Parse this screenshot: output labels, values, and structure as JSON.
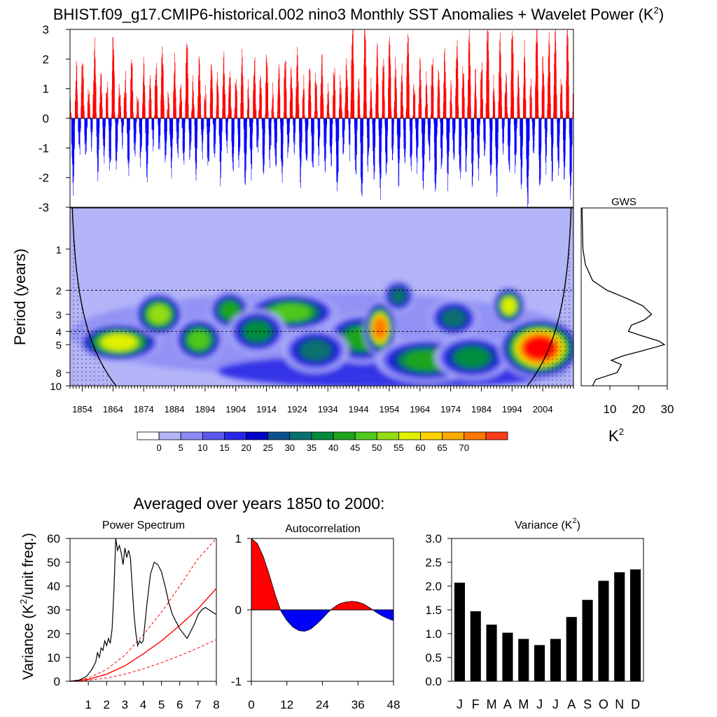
{
  "title": {
    "main": "BHIST.f09_g17.CMIP6-historical.002 nino3 Monthly SST Anomalies + Wavelet Power (K",
    "sup": "2",
    "close": ")"
  },
  "colors": {
    "positive": "#ff0000",
    "negative": "#0000ff",
    "wavelet_levels": [
      "#ffffff",
      "#b4b4f9",
      "#8c8cf5",
      "#5a5af0",
      "#2828e6",
      "#0000c8",
      "#0a508c",
      "#087070",
      "#008c3c",
      "#1ea51e",
      "#50c81e",
      "#96dc14",
      "#e0f000",
      "#ffd200",
      "#ffaa00",
      "#ff7800",
      "#ff3c14",
      "#ff0000"
    ]
  },
  "chart_data": [
    {
      "id": "sst_anomalies",
      "type": "bar",
      "title": "nino3 Monthly SST Anomalies",
      "x_start_year": 1850,
      "x_end_year": 2014,
      "ylim": [
        -3,
        3
      ],
      "yticks": [
        3,
        2,
        1,
        0,
        -1,
        -2,
        -3
      ],
      "ytick_labels": [
        "3",
        "2",
        "1",
        "0",
        "-1",
        "-2",
        "-3"
      ],
      "annual_anomaly_peaks": [
        0.5,
        -2.2,
        1.6,
        -1.0,
        1.8,
        -1.1,
        0.8,
        -0.8,
        2.3,
        -1.8,
        1.4,
        -1.2,
        1.0,
        -1.6,
        2.6,
        -1.5,
        0.9,
        -0.7,
        1.2,
        -1.7,
        1.9,
        -1.1,
        0.6,
        -1.3,
        1.7,
        -1.9,
        1.2,
        -0.8,
        1.6,
        -1.0,
        2.2,
        -1.3,
        0.7,
        -1.6,
        1.8,
        -1.1,
        1.0,
        -1.4,
        2.5,
        -1.2,
        1.1,
        -1.8,
        1.9,
        -1.0,
        0.8,
        -1.5,
        1.7,
        -1.2,
        1.3,
        -1.9,
        1.9,
        -0.9,
        1.4,
        -1.6,
        1.2,
        -1.4,
        2.0,
        -2.1,
        1.0,
        -1.7,
        1.8,
        -1.0,
        1.3,
        -1.8,
        2.0,
        -1.3,
        0.8,
        -1.5,
        1.6,
        -1.9,
        1.9,
        -1.1,
        1.5,
        -1.0,
        2.1,
        -2.0,
        1.1,
        -1.4,
        1.6,
        -1.6,
        1.3,
        -1.2,
        1.9,
        -1.6,
        0.9,
        -1.4,
        1.6,
        -2.3,
        1.2,
        -1.1,
        1.7,
        -1.0,
        3.0,
        -1.8,
        1.2,
        -2.6,
        3.0,
        -1.5,
        1.0,
        -1.9,
        2.3,
        -2.4,
        1.9,
        -1.8,
        2.6,
        -1.3,
        1.7,
        -2.0,
        1.5,
        -1.4,
        2.7,
        -1.6,
        1.0,
        -1.5,
        1.8,
        -2.2,
        1.2,
        -1.2,
        1.9,
        -2.4,
        1.5,
        -1.6,
        2.1,
        -2.0,
        1.0,
        -1.3,
        2.4,
        -1.9,
        1.6,
        -1.6,
        2.8,
        -2.1,
        1.4,
        -1.7,
        1.7,
        -1.2,
        3.0,
        -1.9,
        1.1,
        -2.3,
        2.6,
        -1.0,
        1.3,
        -1.7,
        2.9,
        -1.6,
        1.4,
        -2.2,
        2.2,
        -2.8,
        1.1,
        -1.1,
        3.0,
        -2.3,
        1.9,
        -1.5,
        2.6,
        -2.0,
        2.9,
        -1.7,
        1.2,
        -1.9,
        3.0,
        -2.5,
        1.4,
        -1.5,
        2.1
      ]
    },
    {
      "id": "wavelet_power",
      "type": "heatmap",
      "title": "Wavelet Power (K2)",
      "ylabel": "Period (years)",
      "yticks": [
        1,
        2,
        3,
        4,
        5,
        8,
        10
      ],
      "ytick_labels": [
        "1",
        "2",
        "3",
        "4",
        "5",
        "8",
        "10"
      ],
      "dashed_periods": [
        2,
        4
      ],
      "xticks": [
        1854,
        1864,
        1874,
        1884,
        1894,
        1904,
        1914,
        1924,
        1934,
        1944,
        1954,
        1964,
        1974,
        1984,
        1994,
        2004
      ],
      "xtick_labels": [
        "1854",
        "1864",
        "1874",
        "1884",
        "1894",
        "1904",
        "1914",
        "1924",
        "1934",
        "1944",
        "1954",
        "1964",
        "1974",
        "1984",
        "1994",
        "2004"
      ],
      "xlim": [
        1850,
        2014
      ],
      "plim": [
        0.5,
        10
      ],
      "hotspots": [
        {
          "year": 1866,
          "period": 4.8,
          "power": 55,
          "width_years": 10,
          "height_octaves": 0.35
        },
        {
          "year": 1879,
          "period": 3.0,
          "power": 50,
          "width_years": 6,
          "height_octaves": 0.4
        },
        {
          "year": 1892,
          "period": 4.6,
          "power": 45,
          "width_years": 6,
          "height_octaves": 0.4
        },
        {
          "year": 1902,
          "period": 2.8,
          "power": 40,
          "width_years": 5,
          "height_octaves": 0.35
        },
        {
          "year": 1922,
          "period": 2.9,
          "power": 45,
          "width_years": 11,
          "height_octaves": 0.35
        },
        {
          "year": 1945,
          "period": 4.5,
          "power": 40,
          "width_years": 9,
          "height_octaves": 0.45
        },
        {
          "year": 1951,
          "period": 3.8,
          "power": 72,
          "width_years": 4,
          "height_octaves": 0.5
        },
        {
          "year": 1966,
          "period": 6.5,
          "power": 40,
          "width_years": 12,
          "height_octaves": 0.4
        },
        {
          "year": 1981,
          "period": 6.2,
          "power": 35,
          "width_years": 9,
          "height_octaves": 0.4
        },
        {
          "year": 1993,
          "period": 2.6,
          "power": 58,
          "width_years": 4,
          "height_octaves": 0.35
        },
        {
          "year": 2003,
          "period": 5.3,
          "power": 80,
          "width_years": 10,
          "height_octaves": 0.55
        },
        {
          "year": 1911,
          "period": 4.0,
          "power": 35,
          "width_years": 7,
          "height_octaves": 0.4
        },
        {
          "year": 1930,
          "period": 5.5,
          "power": 30,
          "width_years": 8,
          "height_octaves": 0.4
        },
        {
          "year": 1957,
          "period": 2.2,
          "power": 30,
          "width_years": 4,
          "height_octaves": 0.3
        },
        {
          "year": 1975,
          "period": 3.2,
          "power": 30,
          "width_years": 6,
          "height_octaves": 0.35
        }
      ]
    },
    {
      "id": "wavelet_colorbar",
      "type": "colorbar",
      "levels": [
        0,
        5,
        10,
        15,
        20,
        25,
        30,
        35,
        40,
        45,
        50,
        55,
        60,
        65,
        70
      ],
      "level_labels": [
        "0",
        "5",
        "10",
        "15",
        "20",
        "25",
        "30",
        "35",
        "40",
        "45",
        "50",
        "55",
        "60",
        "65",
        "70"
      ]
    },
    {
      "id": "gws",
      "type": "line",
      "title": "GWS",
      "xlabel": "K",
      "xlabel_sup": "2",
      "xlim": [
        0,
        30
      ],
      "xticks": [
        10,
        20,
        30
      ],
      "xtick_labels": [
        "10",
        "20",
        "30"
      ],
      "period": [
        0.5,
        1.0,
        1.3,
        1.7,
        2.0,
        2.3,
        2.6,
        3.0,
        3.3,
        3.6,
        4.0,
        4.3,
        4.7,
        5.0,
        5.5,
        6.0,
        6.5,
        7.0,
        8.0,
        9.0,
        10.0
      ],
      "power": [
        0.3,
        0.6,
        1.5,
        4.0,
        9.0,
        16.0,
        21.5,
        24.5,
        22.0,
        17.5,
        16.5,
        21.0,
        27.0,
        29.0,
        22.0,
        15.0,
        10.5,
        14.0,
        12.5,
        5.0,
        4.0
      ]
    },
    {
      "id": "power_spectrum",
      "type": "line",
      "title": "Power Spectrum",
      "ylabel": "Variance (K",
      "ylabel_sup": "2",
      "ylabel_close": "/unit freq.)",
      "xlim": [
        0,
        8
      ],
      "ylim": [
        0,
        60
      ],
      "xticks": [
        1,
        2,
        3,
        4,
        5,
        6,
        7,
        8
      ],
      "xtick_labels": [
        "1",
        "2",
        "3",
        "4",
        "5",
        "6",
        "7",
        "8"
      ],
      "yticks": [
        0,
        10,
        20,
        30,
        40,
        50,
        60
      ],
      "ytick_labels": [
        "0",
        "10",
        "20",
        "30",
        "40",
        "50",
        "60"
      ],
      "x": [
        0,
        0.5,
        0.9,
        1.2,
        1.4,
        1.5,
        1.6,
        1.7,
        1.8,
        1.9,
        2.0,
        2.1,
        2.2,
        2.3,
        2.4,
        2.5,
        2.6,
        2.7,
        2.8,
        2.9,
        3.0,
        3.1,
        3.2,
        3.3,
        3.4,
        3.5,
        3.6,
        3.7,
        3.8,
        3.9,
        4.0,
        4.2,
        4.4,
        4.6,
        4.8,
        5.0,
        5.2,
        5.4,
        5.6,
        5.8,
        6.0,
        6.2,
        6.4,
        6.6,
        6.8,
        7.0,
        7.2,
        7.4,
        7.6,
        7.8,
        8.0
      ],
      "y": [
        0,
        0.5,
        2,
        5,
        8,
        12,
        10,
        14,
        13,
        17,
        15,
        18,
        16,
        22,
        38,
        63,
        55,
        57,
        54,
        49,
        56,
        52,
        55,
        52,
        40,
        28,
        20,
        15,
        17,
        16,
        17,
        32,
        45,
        50,
        49,
        46,
        40,
        33,
        28,
        25,
        22,
        20,
        18,
        21,
        24,
        28,
        30,
        31,
        30,
        29,
        28
      ],
      "red_noise": {
        "x": [
          0,
          1,
          2,
          3,
          4,
          5,
          6,
          7,
          8
        ],
        "y": [
          0,
          0.8,
          3,
          6.5,
          11.5,
          17,
          23.5,
          30.5,
          39
        ]
      },
      "upper_conf": {
        "x": [
          0,
          1,
          2,
          3,
          4,
          5,
          6,
          7,
          8
        ],
        "y": [
          0,
          1.3,
          5,
          11,
          19.5,
          29,
          40,
          51.5,
          64
        ]
      },
      "lower_conf": {
        "x": [
          0,
          1,
          2,
          3,
          4,
          5,
          6,
          7,
          8
        ],
        "y": [
          0,
          0.4,
          1.4,
          3,
          5.2,
          7.8,
          10.8,
          14,
          17.5
        ]
      }
    },
    {
      "id": "autocorrelation",
      "type": "area",
      "title": "Autocorrelation",
      "xlim": [
        0,
        48
      ],
      "ylim": [
        -1,
        1
      ],
      "xticks": [
        0,
        12,
        24,
        36,
        48
      ],
      "xtick_labels": [
        "0",
        "12",
        "24",
        "36",
        "48"
      ],
      "yticks": [
        1,
        0,
        -1
      ],
      "ytick_labels": [
        "1",
        "0",
        "-1"
      ],
      "lag_months": [
        0,
        2,
        4,
        6,
        8,
        10,
        12,
        14,
        16,
        18,
        20,
        22,
        24,
        26,
        28,
        30,
        32,
        34,
        36,
        38,
        40,
        42,
        44,
        46,
        48
      ],
      "r": [
        1.0,
        0.93,
        0.75,
        0.5,
        0.22,
        -0.02,
        -0.15,
        -0.24,
        -0.29,
        -0.3,
        -0.27,
        -0.2,
        -0.12,
        -0.03,
        0.04,
        0.09,
        0.11,
        0.12,
        0.11,
        0.08,
        0.03,
        -0.03,
        -0.08,
        -0.12,
        -0.15
      ]
    },
    {
      "id": "monthly_variance",
      "type": "bar",
      "title": "Variance (K",
      "title_sup": "2",
      "title_close": ")",
      "categories": [
        "J",
        "F",
        "M",
        "A",
        "M",
        "J",
        "J",
        "A",
        "S",
        "O",
        "N",
        "D"
      ],
      "values": [
        2.07,
        1.47,
        1.19,
        1.02,
        0.89,
        0.76,
        0.89,
        1.35,
        1.71,
        2.11,
        2.29,
        2.35
      ],
      "ylim": [
        0,
        3
      ],
      "yticks": [
        0.0,
        0.5,
        1.0,
        1.5,
        2.0,
        2.5,
        3.0
      ],
      "ytick_labels": [
        "0.0",
        "0.5",
        "1.0",
        "1.5",
        "2.0",
        "2.5",
        "3.0"
      ]
    }
  ],
  "bottom_title": "Averaged over years 1850 to 2000:"
}
